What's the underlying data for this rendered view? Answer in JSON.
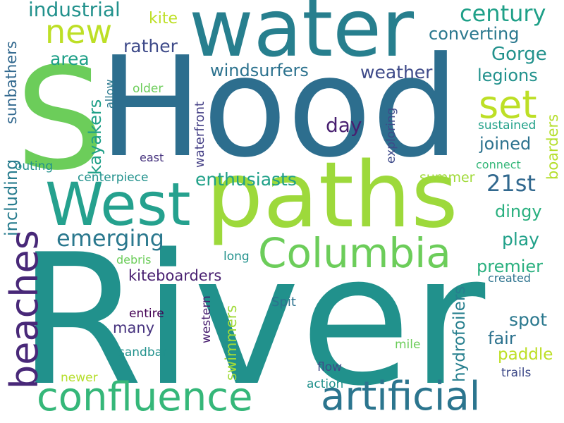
{
  "words": {
    "river": "River",
    "hood": "Hood",
    "water": "water",
    "paths": "paths",
    "s": "S",
    "west": "West",
    "columbia": "Columbia",
    "confluence": "confluence",
    "artificial": "artificial",
    "beaches": "beaches",
    "set": "set",
    "new": "new",
    "century": "century",
    "enthusiasts": "enthusiasts",
    "windsurfers": "windsurfers",
    "emerging": "emerging",
    "industrial": "industrial",
    "kite": "kite",
    "converting": "converting",
    "rather": "rather",
    "gorge": "Gorge",
    "area": "area",
    "weather": "weather",
    "legions": "legions",
    "kayakers": "kayakers",
    "sunbathers": "sunbathers",
    "allow": "allow",
    "older": "older",
    "waterfront": "waterfront",
    "exploring": "exploring",
    "day": "day",
    "joined": "joined",
    "sustained": "sustained",
    "boarders": "boarders",
    "twenty_first": "21st",
    "east": "east",
    "outing": "outing",
    "connect": "connect",
    "including": "including",
    "centerpiece": "centerpiece",
    "summer": "summer",
    "dingy": "dingy",
    "play": "play",
    "premier": "premier",
    "long": "long",
    "debris": "debris",
    "kiteboarders": "kiteboarders",
    "created": "created",
    "many": "many",
    "entire": "entire",
    "spit": "Spit",
    "western": "western",
    "swimmers": "swimmers",
    "spot": "spot",
    "fair": "fair",
    "hydrofoilers": "hydrofoilers",
    "mile": "mile",
    "paddle": "paddle",
    "sandbar": "sandbar",
    "trails": "trails",
    "newer": "newer",
    "flow": "flow",
    "action": "action"
  }
}
